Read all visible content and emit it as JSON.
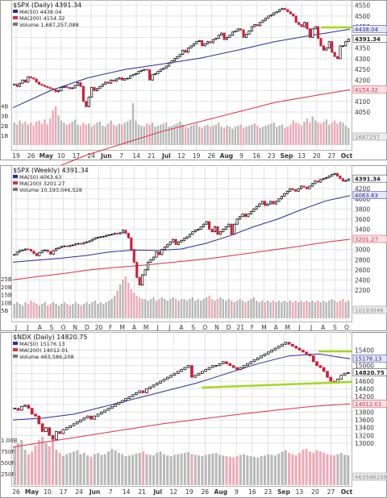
{
  "colors": {
    "up": "#000000",
    "down": "#cc1f3a",
    "ma50": "#2b2b9a",
    "ma200": "#d2334d",
    "vol_up": "#b9b9b9",
    "vol_down": "#f0a9b6",
    "grid": "#e2e2e2",
    "highlight": "#a6d81c",
    "tag_price": "#222222",
    "tag_ma50": "#2b2b9a",
    "tag_ma200": "#d2334d",
    "tag_vol": "#888888"
  },
  "chart_data": [
    {
      "type": "candlestick",
      "title": "$SPX (Daily) 4391.34",
      "legend": [
        {
          "label": "MA(50) 4438.04",
          "kind": "ma50"
        },
        {
          "label": "MA(200) 4154.32",
          "kind": "ma200"
        },
        {
          "label": "Volume 1,687,257,088",
          "kind": "vol"
        }
      ],
      "ylim": [
        4050,
        4560
      ],
      "y_ticks": [
        "4550",
        "4500",
        "4450",
        "4400",
        "4350",
        "4300",
        "4250",
        "4200",
        "4150",
        "4100",
        "4050"
      ],
      "x_ticks": [
        "19",
        "26",
        "May",
        "10",
        "17",
        "24",
        "Jun",
        "7",
        "14",
        "21",
        "Jul",
        "12",
        "19",
        "26",
        "Aug",
        "9",
        "16",
        "23",
        "Sep",
        "13",
        "20",
        "27",
        "Oct"
      ],
      "vol_ticks": [
        "4B",
        "3B",
        "2B",
        "1B"
      ],
      "value_tags": [
        {
          "text": "4438.04",
          "kind": "ma50"
        },
        {
          "text": "4391.34",
          "kind": "price"
        },
        {
          "text": "4154.32",
          "kind": "ma200"
        },
        {
          "text": "1687257",
          "kind": "vol"
        }
      ],
      "closes": [
        4180,
        4170,
        4185,
        4200,
        4190,
        4215,
        4210,
        4205,
        4190,
        4180,
        4175,
        4170,
        4165,
        4160,
        4155,
        4145,
        4150,
        4165,
        4170,
        4165,
        4160,
        4163,
        4175,
        4188,
        4170,
        4100,
        4075,
        4120,
        4165,
        4150,
        4160,
        4170,
        4180,
        4190,
        4185,
        4200,
        4195,
        4205,
        4210,
        4200,
        4206,
        4208,
        4220,
        4225,
        4230,
        4240,
        4245,
        4250,
        4248,
        4200,
        4225,
        4230,
        4240,
        4250,
        4255,
        4265,
        4280,
        4290,
        4300,
        4310,
        4320,
        4340,
        4330,
        4350,
        4360,
        4370,
        4380,
        4385,
        4360,
        4370,
        4380,
        4375,
        4390,
        4395,
        4410,
        4420,
        4390,
        4400,
        4410,
        4425,
        4430,
        4440,
        4435,
        4400,
        4415,
        4430,
        4450,
        4460,
        4455,
        4470,
        4480,
        4490,
        4500,
        4505,
        4515,
        4520,
        4530,
        4535,
        4530,
        4520,
        4510,
        4500,
        4470,
        4460,
        4450,
        4470,
        4440,
        4400,
        4440,
        4450,
        4395,
        4360,
        4340,
        4350,
        4380,
        4330,
        4310,
        4300,
        4360,
        4360,
        4380,
        4391.34
      ],
      "ma50": [
        4070,
        4150,
        4210,
        4250,
        4275,
        4302,
        4340,
        4380,
        4410,
        4438.04
      ],
      "ma200": [
        3720,
        3780,
        3850,
        3905,
        3960,
        4005,
        4050,
        4095,
        4125,
        4154.32
      ],
      "volume": [
        2.2,
        2.0,
        2.4,
        2.1,
        2.3,
        2.0,
        2.2,
        1.9,
        2.3,
        2.4,
        2.1,
        2.5,
        2.0,
        2.6,
        3.4,
        3.8,
        2.9,
        2.4,
        2.2,
        2.0,
        2.1,
        2.3,
        2.5,
        2.0,
        1.9,
        2.2,
        2.0,
        2.1,
        1.8,
        2.0,
        2.2,
        2.3,
        1.9,
        1.8,
        2.1,
        2.4,
        2.0,
        1.9,
        2.1,
        2.0,
        2.2,
        2.3,
        2.5,
        4.1,
        2.4,
        2.0,
        1.9,
        1.8,
        2.1,
        2.0,
        2.2,
        1.8,
        1.9,
        2.0,
        2.1,
        2.2,
        1.8,
        1.9,
        2.0,
        2.1,
        2.3,
        2.0,
        1.8,
        1.7,
        1.9,
        2.0,
        2.1,
        1.8,
        1.7,
        1.9,
        2.0,
        1.8,
        1.9,
        2.0,
        2.2,
        1.8,
        1.7,
        1.9,
        1.8,
        1.6,
        1.8,
        1.9,
        2.0,
        1.7,
        1.8,
        1.9,
        2.0,
        2.1,
        1.9,
        1.7,
        1.8,
        1.9,
        2.0,
        2.1,
        2.2,
        1.8,
        1.9,
        2.0,
        1.7,
        1.8,
        2.0,
        2.4,
        2.2,
        2.1,
        1.9,
        2.3,
        2.6,
        2.2,
        2.8,
        2.4,
        2.2,
        2.1,
        2.3,
        2.5,
        2.0,
        2.2,
        2.4,
        2.1,
        2.3,
        2.2,
        1.9,
        1.7
      ]
    },
    {
      "type": "candlestick",
      "title": "$SPX (Weekly) 4391.34",
      "legend": [
        {
          "label": "MA(50) 4063.63",
          "kind": "ma50"
        },
        {
          "label": "MA(200) 3201.27",
          "kind": "ma200"
        },
        {
          "label": "Volume 10,193,046,528",
          "kind": "vol"
        }
      ],
      "ylim": [
        2200,
        4600
      ],
      "y_ticks": [
        "4400",
        "4200",
        "4000",
        "3800",
        "3600",
        "3400",
        "3200",
        "3000",
        "2800",
        "2600",
        "2400",
        "2200"
      ],
      "x_ticks": [
        "J",
        "J",
        "A",
        "S",
        "O",
        "N",
        "D",
        "20",
        "F",
        "M",
        "A",
        "M",
        "J",
        "J",
        "A",
        "S",
        "O",
        "N",
        "D",
        "21",
        "F",
        "M",
        "A",
        "M",
        "J",
        "J",
        "A",
        "S",
        "O"
      ],
      "vol_ticks": [
        "25B",
        "20B",
        "15B",
        "10B",
        "5B"
      ],
      "value_tags": [
        {
          "text": "4391.34",
          "kind": "price"
        },
        {
          "text": "4063.63",
          "kind": "ma50"
        },
        {
          "text": "3201.27",
          "kind": "ma200"
        },
        {
          "text": "10193046",
          "kind": "vol"
        }
      ],
      "closes": [
        2900,
        2950,
        2980,
        2990,
        3010,
        3000,
        2970,
        2920,
        2880,
        2940,
        2980,
        2990,
        2960,
        2910,
        2980,
        3020,
        3040,
        3060,
        3070,
        3060,
        3080,
        3090,
        3110,
        3120,
        3110,
        3140,
        3150,
        3170,
        3200,
        3230,
        3240,
        3250,
        3260,
        3280,
        3290,
        3300,
        3320,
        3310,
        3330,
        3380,
        3320,
        3230,
        3000,
        2750,
        2450,
        2300,
        2500,
        2600,
        2750,
        2800,
        2850,
        2950,
        2900,
        3000,
        3050,
        3100,
        3150,
        3200,
        3100,
        3150,
        3180,
        3220,
        3250,
        3300,
        3350,
        3380,
        3400,
        3450,
        3500,
        3550,
        3400,
        3350,
        3450,
        3300,
        3350,
        3400,
        3450,
        3500,
        3300,
        3500,
        3600,
        3650,
        3700,
        3650,
        3700,
        3750,
        3800,
        3850,
        3900,
        3950,
        3870,
        3900,
        3950,
        3900,
        3950,
        4000,
        4050,
        4100,
        4150,
        4200,
        4180,
        4150,
        4200,
        4250,
        4230,
        4200,
        4250,
        4300,
        4350,
        4330,
        4380,
        4400,
        4420,
        4450,
        4480,
        4500,
        4450,
        4400,
        4350,
        4360,
        4391.34
      ],
      "ma50": [
        2750,
        2790,
        2830,
        2880,
        2950,
        2990,
        2980,
        3010,
        3120,
        3270,
        3450,
        3600,
        3790,
        3960,
        4063.63
      ],
      "ma200": [
        2400,
        2470,
        2530,
        2600,
        2650,
        2690,
        2740,
        2790,
        2850,
        2920,
        2990,
        3060,
        3140,
        3201.27
      ],
      "volume": [
        9,
        10,
        9,
        8,
        10,
        9,
        11,
        10,
        9,
        8,
        9,
        10,
        8,
        9,
        10,
        9,
        8,
        9,
        10,
        9,
        8,
        9,
        10,
        9,
        8,
        9,
        10,
        9,
        10,
        11,
        9,
        10,
        9,
        10,
        11,
        12,
        14,
        17,
        21,
        24,
        26,
        22,
        18,
        16,
        14,
        13,
        12,
        12,
        11,
        12,
        13,
        11,
        12,
        13,
        12,
        11,
        12,
        13,
        12,
        11,
        12,
        12,
        11,
        12,
        13,
        11,
        12,
        11,
        12,
        13,
        14,
        12,
        11,
        12,
        13,
        12,
        11,
        12,
        11,
        10,
        11,
        12,
        11,
        10,
        11,
        12,
        13,
        11,
        10,
        11,
        10,
        11,
        10,
        11,
        10,
        11,
        10,
        11,
        10,
        11,
        10,
        11,
        10,
        11,
        10,
        11,
        10,
        11,
        10,
        11,
        10,
        11,
        10,
        11,
        12,
        11,
        10,
        11,
        12,
        10,
        11
      ]
    },
    {
      "type": "candlestick",
      "title": "$NDX (Daily) 14820.75",
      "legend": [
        {
          "label": "MA(50) 15176.13",
          "kind": "ma50"
        },
        {
          "label": "MA(200) 14012.01",
          "kind": "ma200"
        },
        {
          "label": "Volume 463,586,208",
          "kind": "vol"
        }
      ],
      "ylim": [
        13000,
        15700
      ],
      "y_ticks": [
        "15400",
        "15200",
        "15000",
        "14800",
        "14600",
        "14400",
        "14200",
        "14000",
        "13800",
        "13600",
        "13400",
        "13200",
        "13000"
      ],
      "x_ticks": [
        "26",
        "May",
        "10",
        "17",
        "24",
        "Jun",
        "7",
        "14",
        "21",
        "Jul",
        "12",
        "19",
        "26",
        "Aug",
        "9",
        "16",
        "23",
        "Sep",
        "13",
        "20",
        "27",
        "Oct"
      ],
      "vol_ticks": [
        "1.00B",
        "750M",
        "500M",
        "250M"
      ],
      "value_tags": [
        {
          "text": "15176.13",
          "kind": "ma50"
        },
        {
          "text": "14820.75",
          "kind": "price"
        },
        {
          "text": "14012.01",
          "kind": "ma200"
        },
        {
          "text": "463586208",
          "kind": "vol"
        }
      ],
      "closes": [
        13900,
        13850,
        13950,
        13980,
        13900,
        13750,
        13700,
        13500,
        13300,
        13400,
        13200,
        13100,
        13300,
        13250,
        13350,
        13400,
        13450,
        13500,
        13550,
        13600,
        13650,
        13700,
        13620,
        13700,
        13750,
        13800,
        13850,
        13900,
        13950,
        14000,
        14050,
        14100,
        14150,
        14200,
        14250,
        14300,
        14350,
        14300,
        14400,
        14450,
        14500,
        14550,
        14600,
        14650,
        14700,
        14750,
        14800,
        14850,
        14900,
        14950,
        15000,
        14700,
        14750,
        14800,
        14850,
        14900,
        14950,
        15000,
        15000,
        15050,
        15100,
        15050,
        15000,
        14950,
        14900,
        14950,
        15000,
        15050,
        15100,
        15150,
        15200,
        15250,
        15300,
        15350,
        15400,
        15450,
        15500,
        15550,
        15600,
        15550,
        15500,
        15450,
        15400,
        15350,
        15300,
        15250,
        15100,
        15000,
        14950,
        14850,
        14700,
        14600,
        14550,
        14650,
        14750,
        14800,
        14820.75
      ],
      "ma50": [
        13600,
        13650,
        13750,
        13950,
        14150,
        14350,
        14550,
        14800,
        15050,
        15250,
        15300,
        15176.13
      ],
      "ma200": [
        12900,
        13050,
        13200,
        13350,
        13500,
        13620,
        13740,
        13850,
        13950,
        14012.01
      ],
      "volume": [
        600,
        650,
        700,
        550,
        480,
        520,
        620,
        700,
        750,
        650,
        600,
        700,
        550,
        500,
        450,
        480,
        500,
        520,
        540,
        480,
        500,
        460,
        440,
        480,
        500,
        470,
        480,
        520,
        560,
        540,
        500,
        480,
        450,
        460,
        470,
        490,
        500,
        520,
        480,
        470,
        460,
        500,
        520,
        480,
        460,
        450,
        470,
        480,
        490,
        500,
        510,
        480,
        470,
        460,
        450,
        470,
        480,
        490,
        500,
        470,
        460,
        450,
        440,
        430,
        450,
        470,
        480,
        460,
        450,
        440,
        430,
        450,
        460,
        480,
        470,
        460,
        490,
        520,
        540,
        500,
        480,
        460,
        500,
        550,
        560,
        520,
        500,
        540,
        520,
        500,
        480,
        470,
        460,
        480,
        500,
        470,
        463.6
      ]
    }
  ]
}
